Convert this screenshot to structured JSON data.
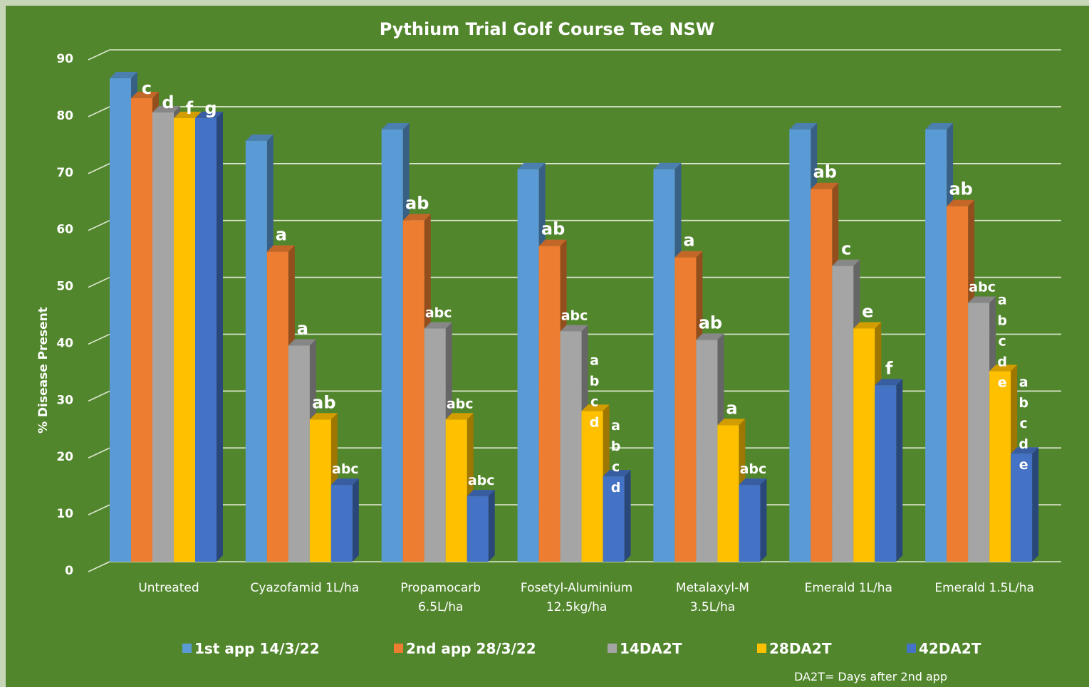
{
  "chart_data": {
    "type": "bar",
    "title": "Pythium Trial Golf Course Tee NSW",
    "ylabel": "% Disease Present",
    "xlabel": "",
    "ylim": [
      0,
      90
    ],
    "yticks": [
      0,
      10,
      20,
      30,
      40,
      50,
      60,
      70,
      80,
      90
    ],
    "grid": true,
    "legend_position": "bottom",
    "categories": [
      [
        "Untreated"
      ],
      [
        "Cyazofamid 1L/ha"
      ],
      [
        "Propamocarb",
        "6.5L/ha"
      ],
      [
        "Fosetyl-Aluminium",
        "12.5kg/ha"
      ],
      [
        "Metalaxyl-M",
        "3.5L/ha"
      ],
      [
        "Emerald 1L/ha"
      ],
      [
        "Emerald 1.5L/ha"
      ]
    ],
    "series": [
      {
        "name": "1st app 14/3/22",
        "color": "#5b9bd5",
        "values": [
          85,
          74,
          76,
          69,
          69,
          76,
          76
        ],
        "labels": [
          "",
          "",
          "",
          "",
          "",
          "",
          ""
        ]
      },
      {
        "name": "2nd app 28/3/22",
        "color": "#ed7d31",
        "values": [
          81.5,
          54.5,
          60,
          55.5,
          53.5,
          65.5,
          62.5
        ],
        "labels": [
          "c",
          "a",
          "ab",
          "ab",
          "a",
          "ab",
          "ab"
        ]
      },
      {
        "name": "14DA2T",
        "color": "#a5a5a5",
        "values": [
          79,
          38,
          41,
          40.5,
          39,
          52,
          45.5
        ],
        "labels": [
          "d",
          "a",
          "abc",
          "abc",
          "ab",
          "c",
          "abc"
        ]
      },
      {
        "name": "28DA2T",
        "color": "#ffc000",
        "values": [
          78,
          25,
          25,
          26.5,
          24,
          41,
          33.5
        ],
        "labels": [
          "f",
          "ab",
          "abc",
          "abcd",
          "a",
          "e",
          "abcde"
        ]
      },
      {
        "name": "42DA2T",
        "color": "#4472c4",
        "values": [
          78,
          13.5,
          11.5,
          15,
          13.5,
          31,
          19
        ],
        "labels": [
          "g",
          "abc",
          "abc",
          "abcd",
          "abc",
          "f",
          "abcde"
        ]
      }
    ],
    "footnote": "DA2T= Days after 2nd app"
  }
}
